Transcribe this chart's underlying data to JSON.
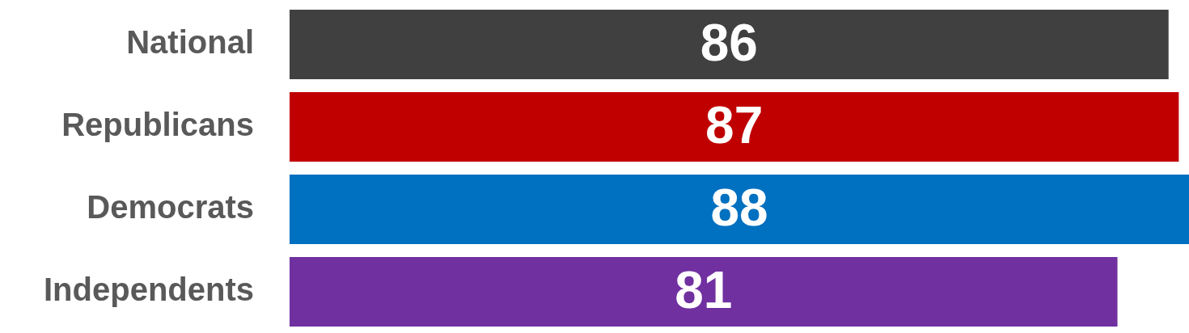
{
  "chart_data": {
    "type": "bar",
    "orientation": "horizontal",
    "categories": [
      "National",
      "Republicans",
      "Democrats",
      "Independents"
    ],
    "values": [
      86,
      87,
      88,
      81
    ],
    "colors": [
      "#404040",
      "#c00000",
      "#0070c0",
      "#7030a0"
    ],
    "data_labels": true,
    "tick_labels": "y"
  }
}
